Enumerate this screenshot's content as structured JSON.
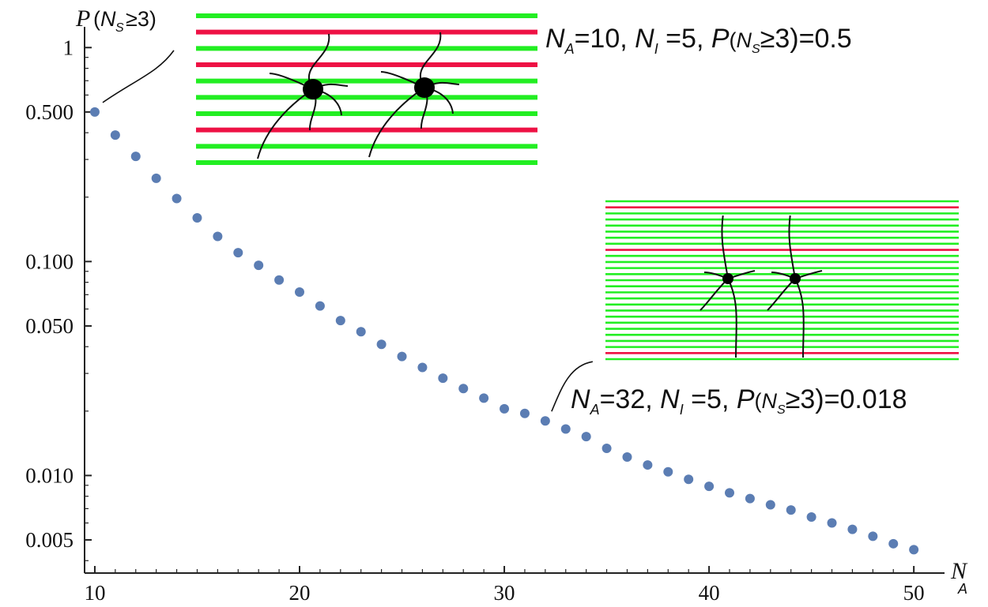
{
  "chart_data": {
    "type": "scatter",
    "xlabel": "N",
    "xlabel_sub": "A",
    "ylabel_prefix": "P",
    "ylabel_var": "N",
    "ylabel_sub": "S",
    "ylabel_suffix": "≥3)",
    "yscale": "log",
    "xlim": [
      9.5,
      51.5
    ],
    "ylim": [
      0.0035,
      1.25
    ],
    "xticks": [
      10,
      20,
      30,
      40,
      50
    ],
    "xtick_labels": [
      "10",
      "20",
      "30",
      "40",
      "50"
    ],
    "yticks": [
      1,
      0.5,
      0.1,
      0.05,
      0.01,
      0.005
    ],
    "ytick_labels": [
      "1",
      "0.500",
      "0.100",
      "0.050",
      "0.010",
      "0.005"
    ],
    "point_color": "#5b7db3",
    "x": [
      10,
      11,
      12,
      13,
      14,
      15,
      16,
      17,
      18,
      19,
      20,
      21,
      22,
      23,
      24,
      25,
      26,
      27,
      28,
      29,
      30,
      31,
      32,
      33,
      34,
      35,
      36,
      37,
      38,
      39,
      40,
      41,
      42,
      43,
      44,
      45,
      46,
      47,
      48,
      49,
      50
    ],
    "y": [
      0.5,
      0.39,
      0.31,
      0.245,
      0.197,
      0.16,
      0.131,
      0.11,
      0.096,
      0.082,
      0.072,
      0.062,
      0.053,
      0.047,
      0.041,
      0.036,
      0.032,
      0.0285,
      0.0255,
      0.023,
      0.0205,
      0.0195,
      0.018,
      0.0165,
      0.0152,
      0.0134,
      0.0122,
      0.0112,
      0.0104,
      0.0096,
      0.0089,
      0.0083,
      0.0078,
      0.0073,
      0.0069,
      0.0064,
      0.006,
      0.0056,
      0.0052,
      0.0048,
      0.0045
    ],
    "annotations": [
      {
        "pre": "N",
        "sub1": "A",
        "mid1": "=10, ",
        "mid2": "N",
        "sub2": "I",
        "mid3": " =5, ",
        "p": "P",
        "paren_open": "(",
        "ns": "N",
        "sub3": "S",
        "tail": "≥3)=0.5",
        "point_index": 0
      },
      {
        "pre": "N",
        "sub1": "A",
        "mid1": "=32, ",
        "mid2": "N",
        "sub2": "I",
        "mid3": " =5, ",
        "p": "P",
        "paren_open": "(",
        "ns": "N",
        "sub3": "S",
        "tail": "≥3)=0.018",
        "point_index": 22
      }
    ],
    "insets": [
      {
        "green": "#22ee22",
        "red": "#ee1144",
        "stripes": [
          "g",
          "r",
          "g",
          "r",
          "g",
          "g",
          "g",
          "r",
          "g",
          "g"
        ]
      },
      {
        "green": "#22ee22",
        "red": "#ee1144",
        "stripes": [
          "g",
          "r",
          "g",
          "g",
          "g",
          "g",
          "g",
          "g",
          "r",
          "g",
          "g",
          "g",
          "g",
          "g",
          "g",
          "g",
          "g",
          "g",
          "g",
          "g",
          "g",
          "g",
          "g",
          "g",
          "g",
          "r",
          "g"
        ]
      }
    ]
  }
}
